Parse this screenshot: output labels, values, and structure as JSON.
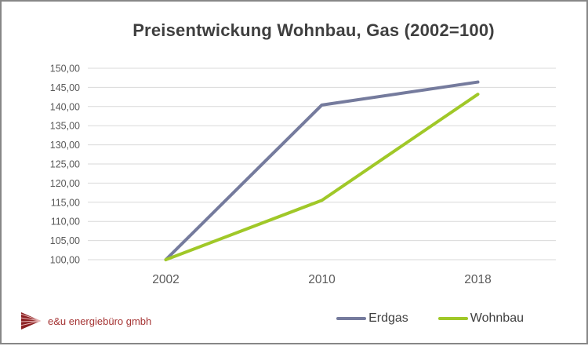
{
  "window": {
    "background": "#ffffff",
    "border_color": "#878787"
  },
  "chart_data": {
    "type": "line",
    "title": "Preisentwickung Wohnbau, Gas (2002=100)",
    "title_color": "#3f3f3f",
    "categories": [
      "2002",
      "2010",
      "2018"
    ],
    "series": [
      {
        "name": "Erdgas",
        "color": "#757b9d",
        "values": [
          100.0,
          140.4,
          146.4
        ]
      },
      {
        "name": "Wohnbau",
        "color": "#a0c828",
        "values": [
          100.0,
          115.5,
          143.2
        ]
      }
    ],
    "xlabel": "",
    "ylabel": "",
    "ylim": [
      100,
      150
    ],
    "y_ticks": [
      {
        "value": 100,
        "label": "100,00"
      },
      {
        "value": 105,
        "label": "105,00"
      },
      {
        "value": 110,
        "label": "110,00"
      },
      {
        "value": 115,
        "label": "115,00"
      },
      {
        "value": 120,
        "label": "120,00"
      },
      {
        "value": 125,
        "label": "125,00"
      },
      {
        "value": 130,
        "label": "130,00"
      },
      {
        "value": 135,
        "label": "135,00"
      },
      {
        "value": 140,
        "label": "140,00"
      },
      {
        "value": 145,
        "label": "145,00"
      },
      {
        "value": 150,
        "label": "150,00"
      }
    ],
    "grid": "horizontal",
    "gridline_color": "#d9d9d9",
    "tick_label_color": "#595959",
    "legend_position": "bottom-right",
    "legend_text_color": "#404040"
  },
  "footer": {
    "company": "e&u energiebüro gmbh",
    "text_color": "#a53434",
    "logo_icon": "striped-arrow-right-icon",
    "logo_color": "#8c2022"
  }
}
